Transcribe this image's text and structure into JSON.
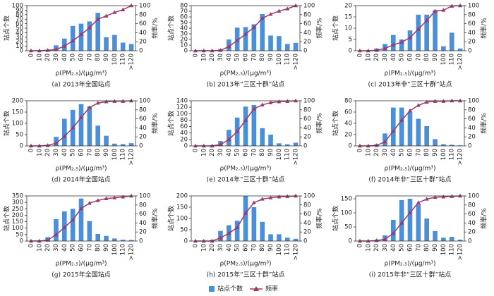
{
  "chart_data": [
    {
      "type": "bar",
      "caption": "(a) 2013年全国站点",
      "x_label": "ρ(PM₂.₅)/(μg/m³)",
      "y_label": "站点个数",
      "y2_label": "频率/%",
      "categories": [
        "0",
        "10",
        "20",
        "30",
        "40",
        "50",
        "60",
        "70",
        "80",
        "90",
        "100",
        "110",
        ">120"
      ],
      "series": [
        {
          "name": "站点个数",
          "color": "#4a8fd8",
          "values": [
            0,
            0,
            2,
            12,
            27,
            55,
            60,
            65,
            84,
            30,
            35,
            18,
            15
          ]
        },
        {
          "name": "频率",
          "color": "#9b3a6b",
          "axis": "y2",
          "values": [
            0,
            0,
            1,
            3,
            10,
            22,
            36,
            51,
            70,
            77,
            85,
            91,
            100
          ]
        }
      ],
      "ylim": [
        0,
        100
      ],
      "yticks": [
        0,
        10,
        20,
        30,
        40,
        50,
        60,
        70,
        80,
        90,
        100
      ],
      "y2lim": [
        0,
        100
      ],
      "y2ticks": [
        0,
        20,
        40,
        60,
        80,
        100
      ]
    },
    {
      "type": "bar",
      "caption": "(b) 2013年“三区十群”站点",
      "x_label": "ρ(PM₂.₅)/(μg/m³)",
      "y_label": "站点个数",
      "y2_label": "频率/%",
      "categories": [
        "0",
        "10",
        "20",
        "30",
        "40",
        "50",
        "60",
        "70",
        "80",
        "90",
        "100",
        "110",
        ">120"
      ],
      "series": [
        {
          "name": "站点个数",
          "color": "#4a8fd8",
          "values": [
            0,
            0,
            0,
            3,
            20,
            41,
            42,
            47,
            65,
            27,
            26,
            12,
            14
          ]
        },
        {
          "name": "频率",
          "color": "#9b3a6b",
          "axis": "y2",
          "values": [
            0,
            0,
            0,
            1,
            9,
            23,
            37,
            52,
            72,
            81,
            88,
            93,
            100
          ]
        }
      ],
      "ylim": [
        0,
        80
      ],
      "yticks": [
        0,
        10,
        20,
        30,
        40,
        50,
        60,
        70,
        80
      ],
      "y2lim": [
        0,
        100
      ],
      "y2ticks": [
        0,
        20,
        40,
        60,
        80,
        100
      ]
    },
    {
      "type": "bar",
      "caption": "(c) 2013年非“三区十群”站点",
      "x_label": "ρ(PM₂.₅)/(μg/m³)",
      "y_label": "站点个数",
      "y2_label": "频率/%",
      "categories": [
        "0",
        "10",
        "20",
        "30",
        "40",
        "50",
        "60",
        "70",
        "80",
        "90",
        "100",
        "110",
        ">120"
      ],
      "series": [
        {
          "name": "站点个数",
          "color": "#4a8fd8",
          "values": [
            0,
            0,
            1,
            3,
            7,
            5,
            9,
            16,
            16,
            18,
            2,
            8,
            1
          ]
        },
        {
          "name": "频率",
          "color": "#9b3a6b",
          "axis": "y2",
          "values": [
            0,
            0,
            1,
            5,
            13,
            19,
            29,
            48,
            67,
            88,
            90,
            99,
            100
          ]
        }
      ],
      "ylim": [
        0,
        20
      ],
      "yticks": [
        0,
        5,
        10,
        15,
        20
      ],
      "y2lim": [
        0,
        100
      ],
      "y2ticks": [
        0,
        20,
        40,
        60,
        80,
        100
      ]
    },
    {
      "type": "bar",
      "caption": "(d) 2014年全国站点",
      "x_label": "ρ(PM₂.₅)/(μg/m³)",
      "y_label": "站点个数",
      "y2_label": "频率/%",
      "categories": [
        "0",
        "10",
        "20",
        "30",
        "40",
        "50",
        "60",
        "70",
        "80",
        "90",
        "100",
        "110",
        ">120"
      ],
      "series": [
        {
          "name": "站点个数",
          "color": "#4a8fd8",
          "values": [
            0,
            0,
            5,
            40,
            120,
            160,
            185,
            175,
            90,
            45,
            10,
            8,
            12
          ]
        },
        {
          "name": "频率",
          "color": "#9b3a6b",
          "axis": "y2",
          "values": [
            0,
            0,
            1,
            6,
            21,
            40,
            63,
            85,
            95,
            98,
            99,
            99,
            100
          ]
        }
      ],
      "ylim": [
        0,
        200
      ],
      "yticks": [
        0,
        50,
        100,
        150,
        200
      ],
      "y2lim": [
        0,
        100
      ],
      "y2ticks": [
        0,
        20,
        40,
        60,
        80,
        100
      ]
    },
    {
      "type": "bar",
      "caption": "(e) 2014年“三区十群”站点",
      "x_label": "ρ(PM₂.₅)/(μg/m³)",
      "y_label": "站点个数",
      "y2_label": "频率/%",
      "categories": [
        "0",
        "10",
        "20",
        "30",
        "40",
        "50",
        "60",
        "70",
        "80",
        "90",
        "100",
        "110",
        ">120"
      ],
      "series": [
        {
          "name": "站点个数",
          "color": "#4a8fd8",
          "values": [
            0,
            0,
            2,
            15,
            50,
            88,
            122,
            127,
            55,
            35,
            8,
            5,
            10
          ]
        },
        {
          "name": "频率",
          "color": "#9b3a6b",
          "axis": "y2",
          "values": [
            0,
            0,
            0,
            3,
            14,
            32,
            57,
            82,
            91,
            96,
            98,
            99,
            100
          ]
        }
      ],
      "ylim": [
        0,
        140
      ],
      "yticks": [
        0,
        20,
        40,
        60,
        80,
        100,
        120,
        140
      ],
      "y2lim": [
        0,
        100
      ],
      "y2ticks": [
        0,
        20,
        40,
        60,
        80,
        100
      ]
    },
    {
      "type": "bar",
      "caption": "(f) 2014年非“三区十群”站点",
      "x_label": "ρ(PM₂.₅)/(μg/m³)",
      "y_label": "站点个数",
      "y2_label": "频率/%",
      "categories": [
        "0",
        "10",
        "20",
        "30",
        "40",
        "50",
        "60",
        "70",
        "80",
        "90",
        "100",
        "110",
        ">120"
      ],
      "series": [
        {
          "name": "站点个数",
          "color": "#4a8fd8",
          "values": [
            0,
            0,
            3,
            22,
            68,
            68,
            60,
            48,
            35,
            12,
            3,
            2,
            1
          ]
        },
        {
          "name": "频率",
          "color": "#9b3a6b",
          "axis": "y2",
          "values": [
            0,
            0,
            1,
            9,
            33,
            57,
            78,
            90,
            97,
            99,
            99,
            100,
            100
          ]
        }
      ],
      "ylim": [
        0,
        80
      ],
      "yticks": [
        0,
        20,
        40,
        60,
        80
      ],
      "y2lim": [
        0,
        100
      ],
      "y2ticks": [
        0,
        20,
        40,
        60,
        80,
        100
      ]
    },
    {
      "type": "bar",
      "caption": "(g) 2015年全国站点",
      "x_label": "ρ(PM₂.₅)/(μg/m³)",
      "y_label": "站点个数",
      "y2_label": "频率/%",
      "categories": [
        "0",
        "10",
        "20",
        "30",
        "40",
        "50",
        "60",
        "70",
        "80",
        "90",
        "100",
        "110",
        ">120"
      ],
      "series": [
        {
          "name": "站点个数",
          "color": "#4a8fd8",
          "values": [
            0,
            5,
            30,
            170,
            230,
            250,
            330,
            155,
            55,
            40,
            20,
            10,
            8
          ]
        },
        {
          "name": "频率",
          "color": "#9b3a6b",
          "axis": "y2",
          "values": [
            0,
            0,
            2,
            14,
            30,
            47,
            72,
            84,
            90,
            94,
            96,
            98,
            100
          ]
        }
      ],
      "ylim": [
        0,
        350
      ],
      "yticks": [
        0,
        50,
        100,
        150,
        200,
        250,
        300,
        350
      ],
      "y2lim": [
        0,
        100
      ],
      "y2ticks": [
        0,
        20,
        40,
        60,
        80,
        100
      ]
    },
    {
      "type": "bar",
      "caption": "(h) 2015年“三区十群”站点",
      "x_label": "ρ(PM₂.₅)/(μg/m³)",
      "y_label": "站点个数",
      "y2_label": "频率/%",
      "categories": [
        "0",
        "10",
        "20",
        "30",
        "40",
        "50",
        "60",
        "70",
        "80",
        "90",
        "100",
        "110",
        ">120"
      ],
      "series": [
        {
          "name": "站点个数",
          "color": "#4a8fd8",
          "values": [
            0,
            0,
            5,
            45,
            70,
            90,
            200,
            150,
            85,
            30,
            30,
            15,
            10
          ]
        },
        {
          "name": "频率",
          "color": "#9b3a6b",
          "axis": "y2",
          "values": [
            0,
            0,
            0,
            7,
            17,
            30,
            62,
            85,
            93,
            96,
            98,
            99,
            100
          ]
        }
      ],
      "ylim": [
        0,
        200
      ],
      "yticks": [
        0,
        50,
        100,
        150,
        200
      ],
      "y2lim": [
        0,
        100
      ],
      "y2ticks": [
        0,
        20,
        40,
        60,
        80,
        100
      ]
    },
    {
      "type": "bar",
      "caption": "(i) 2015年非“三区十群”站点",
      "x_label": "ρ(PM₂.₅)/(μg/m³)",
      "y_label": "站点个数",
      "y2_label": "频率/%",
      "categories": [
        "0",
        "10",
        "20",
        "30",
        "40",
        "50",
        "60",
        "70",
        "80",
        "90",
        "100",
        "110",
        ">120"
      ],
      "series": [
        {
          "name": "站点个数",
          "color": "#4a8fd8",
          "values": [
            0,
            0,
            5,
            20,
            75,
            145,
            150,
            130,
            80,
            35,
            12,
            15,
            5
          ]
        },
        {
          "name": "频率",
          "color": "#9b3a6b",
          "axis": "y2",
          "values": [
            0,
            0,
            1,
            4,
            17,
            40,
            63,
            85,
            93,
            97,
            98,
            99,
            100
          ]
        }
      ],
      "ylim": [
        0,
        160
      ],
      "yticks": [
        0,
        50,
        100,
        150
      ],
      "y2lim": [
        0,
        100
      ],
      "y2ticks": [
        0,
        20,
        40,
        60,
        80,
        100
      ]
    }
  ]
}
